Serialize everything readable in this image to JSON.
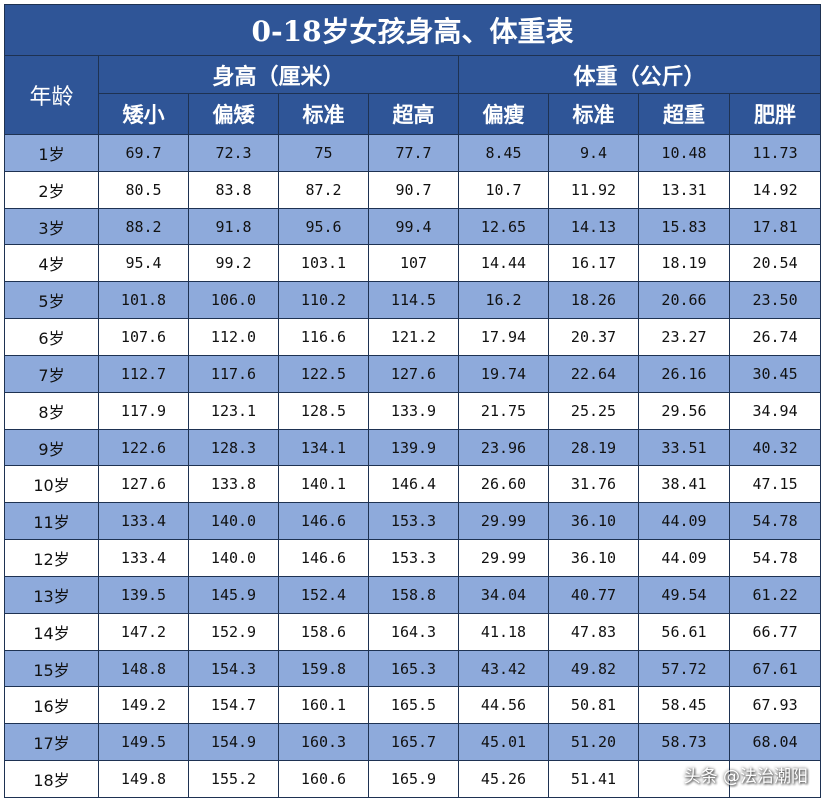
{
  "title": "0-18岁女孩身高、体重表",
  "headers": {
    "age": "年龄",
    "height_group": "身高（厘米）",
    "weight_group": "体重（公斤）",
    "height_cols": [
      "矮小",
      "偏矮",
      "标准",
      "超高"
    ],
    "weight_cols": [
      "偏瘦",
      "标准",
      "超重",
      "肥胖"
    ]
  },
  "rows": [
    {
      "age": "1岁",
      "h": [
        "69.7",
        "72.3",
        "75",
        "77.7"
      ],
      "w": [
        "8.45",
        "9.4",
        "10.48",
        "11.73"
      ]
    },
    {
      "age": "2岁",
      "h": [
        "80.5",
        "83.8",
        "87.2",
        "90.7"
      ],
      "w": [
        "10.7",
        "11.92",
        "13.31",
        "14.92"
      ]
    },
    {
      "age": "3岁",
      "h": [
        "88.2",
        "91.8",
        "95.6",
        "99.4"
      ],
      "w": [
        "12.65",
        "14.13",
        "15.83",
        "17.81"
      ]
    },
    {
      "age": "4岁",
      "h": [
        "95.4",
        "99.2",
        "103.1",
        "107"
      ],
      "w": [
        "14.44",
        "16.17",
        "18.19",
        "20.54"
      ]
    },
    {
      "age": "5岁",
      "h": [
        "101.8",
        "106.0",
        "110.2",
        "114.5"
      ],
      "w": [
        "16.2",
        "18.26",
        "20.66",
        "23.50"
      ]
    },
    {
      "age": "6岁",
      "h": [
        "107.6",
        "112.0",
        "116.6",
        "121.2"
      ],
      "w": [
        "17.94",
        "20.37",
        "23.27",
        "26.74"
      ]
    },
    {
      "age": "7岁",
      "h": [
        "112.7",
        "117.6",
        "122.5",
        "127.6"
      ],
      "w": [
        "19.74",
        "22.64",
        "26.16",
        "30.45"
      ]
    },
    {
      "age": "8岁",
      "h": [
        "117.9",
        "123.1",
        "128.5",
        "133.9"
      ],
      "w": [
        "21.75",
        "25.25",
        "29.56",
        "34.94"
      ]
    },
    {
      "age": "9岁",
      "h": [
        "122.6",
        "128.3",
        "134.1",
        "139.9"
      ],
      "w": [
        "23.96",
        "28.19",
        "33.51",
        "40.32"
      ]
    },
    {
      "age": "10岁",
      "h": [
        "127.6",
        "133.8",
        "140.1",
        "146.4"
      ],
      "w": [
        "26.60",
        "31.76",
        "38.41",
        "47.15"
      ]
    },
    {
      "age": "11岁",
      "h": [
        "133.4",
        "140.0",
        "146.6",
        "153.3"
      ],
      "w": [
        "29.99",
        "36.10",
        "44.09",
        "54.78"
      ]
    },
    {
      "age": "12岁",
      "h": [
        "133.4",
        "140.0",
        "146.6",
        "153.3"
      ],
      "w": [
        "29.99",
        "36.10",
        "44.09",
        "54.78"
      ]
    },
    {
      "age": "13岁",
      "h": [
        "139.5",
        "145.9",
        "152.4",
        "158.8"
      ],
      "w": [
        "34.04",
        "40.77",
        "49.54",
        "61.22"
      ]
    },
    {
      "age": "14岁",
      "h": [
        "147.2",
        "152.9",
        "158.6",
        "164.3"
      ],
      "w": [
        "41.18",
        "47.83",
        "56.61",
        "66.77"
      ]
    },
    {
      "age": "15岁",
      "h": [
        "148.8",
        "154.3",
        "159.8",
        "165.3"
      ],
      "w": [
        "43.42",
        "49.82",
        "57.72",
        "67.61"
      ]
    },
    {
      "age": "16岁",
      "h": [
        "149.2",
        "154.7",
        "160.1",
        "165.5"
      ],
      "w": [
        "44.56",
        "50.81",
        "58.45",
        "67.93"
      ]
    },
    {
      "age": "17岁",
      "h": [
        "149.5",
        "154.9",
        "160.3",
        "165.7"
      ],
      "w": [
        "45.01",
        "51.20",
        "58.73",
        "68.04"
      ]
    },
    {
      "age": "18岁",
      "h": [
        "149.8",
        "155.2",
        "160.6",
        "165.9"
      ],
      "w": [
        "45.26",
        "51.41",
        "",
        ""
      ]
    }
  ],
  "watermark": "头条 @法治潮阳",
  "colors": {
    "header_bg": "#2f5597",
    "shaded_row_bg": "#8eaadb",
    "plain_row_bg": "#ffffff",
    "header_text": "#ffffff"
  }
}
